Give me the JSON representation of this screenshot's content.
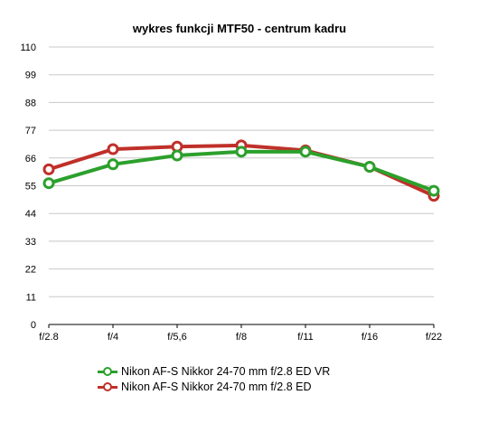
{
  "chart_data": {
    "type": "line",
    "title": "wykres funkcji MTF50 - centrum kadru",
    "xlabel": "",
    "ylabel": "",
    "categories": [
      "f/2.8",
      "f/4",
      "f/5,6",
      "f/8",
      "f/11",
      "f/16",
      "f/22"
    ],
    "yticks": [
      "0",
      "11",
      "22",
      "33",
      "44",
      "55",
      "66",
      "77",
      "88",
      "99",
      "110"
    ],
    "ylim": [
      0,
      110
    ],
    "grid": true,
    "legend_position": "bottom",
    "series": [
      {
        "name": "Nikon AF-S Nikkor 24-70 mm f/2.8 ED VR",
        "color": "#2ca02c",
        "values": [
          56,
          63.5,
          67,
          68.5,
          68.5,
          62.5,
          53
        ]
      },
      {
        "name": "Nikon AF-S Nikkor 24-70 mm f/2.8 ED",
        "color": "#c0302a",
        "values": [
          61.5,
          69.5,
          70.5,
          71,
          69,
          62.5,
          51
        ]
      }
    ]
  }
}
